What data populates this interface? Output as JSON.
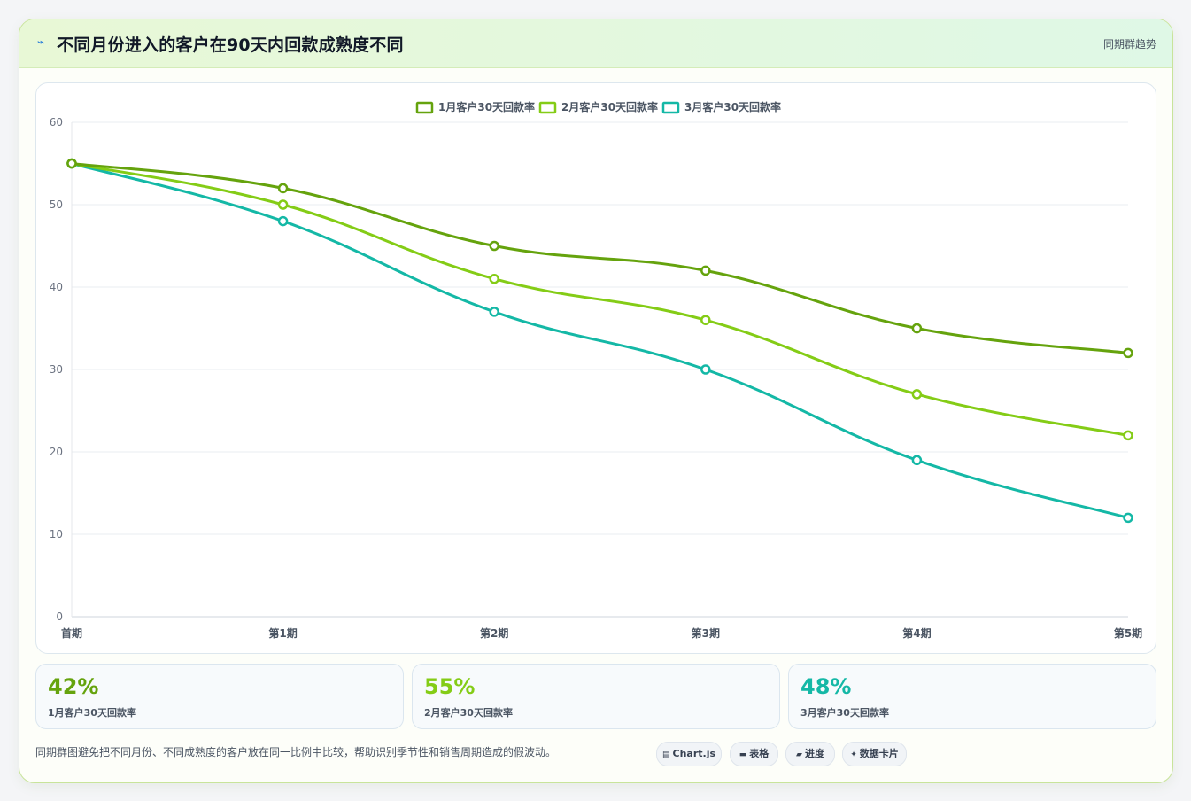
{
  "header": {
    "icon": "trend-icon",
    "title": "不同月份进入的客户在90天内回款成熟度不同",
    "tag": "同期群趋势"
  },
  "chart_data": {
    "type": "line",
    "categories": [
      "首期",
      "第1期",
      "第2期",
      "第3期",
      "第4期",
      "第5期"
    ],
    "series": [
      {
        "name": "1月客户30天回款率",
        "color": "#65a30d",
        "values": [
          55,
          52,
          45,
          42,
          35,
          32
        ]
      },
      {
        "name": "2月客户30天回款率",
        "color": "#84cc16",
        "values": [
          55,
          50,
          41,
          36,
          27,
          22
        ]
      },
      {
        "name": "3月客户30天回款率",
        "color": "#14b8a6",
        "values": [
          55,
          48,
          37,
          30,
          19,
          12
        ]
      }
    ],
    "y_ticks": [
      "0",
      "10",
      "20",
      "30",
      "40",
      "50",
      "60"
    ],
    "ylim": [
      0,
      60
    ],
    "grid": true,
    "legend": "top-center"
  },
  "stats": [
    {
      "value": "42%",
      "label": "1月客户30天回款率",
      "color": "#65a30d"
    },
    {
      "value": "55%",
      "label": "2月客户30天回款率",
      "color": "#84cc16"
    },
    {
      "value": "48%",
      "label": "3月客户30天回款率",
      "color": "#14b8a6"
    }
  ],
  "footer": {
    "note": "同期群图避免把不同月份、不同成熟度的客户放在同一比例中比较，帮助识别季节性和销售周期造成的假波动。",
    "chips": [
      {
        "icon": "chart-icon",
        "glyph": "▤",
        "label": "Chart.js"
      },
      {
        "icon": "table-icon",
        "glyph": "▬",
        "label": "表格"
      },
      {
        "icon": "progress-icon",
        "glyph": "▰",
        "label": "进度"
      },
      {
        "icon": "sparkle-icon",
        "glyph": "✦",
        "label": "数据卡片"
      }
    ]
  }
}
